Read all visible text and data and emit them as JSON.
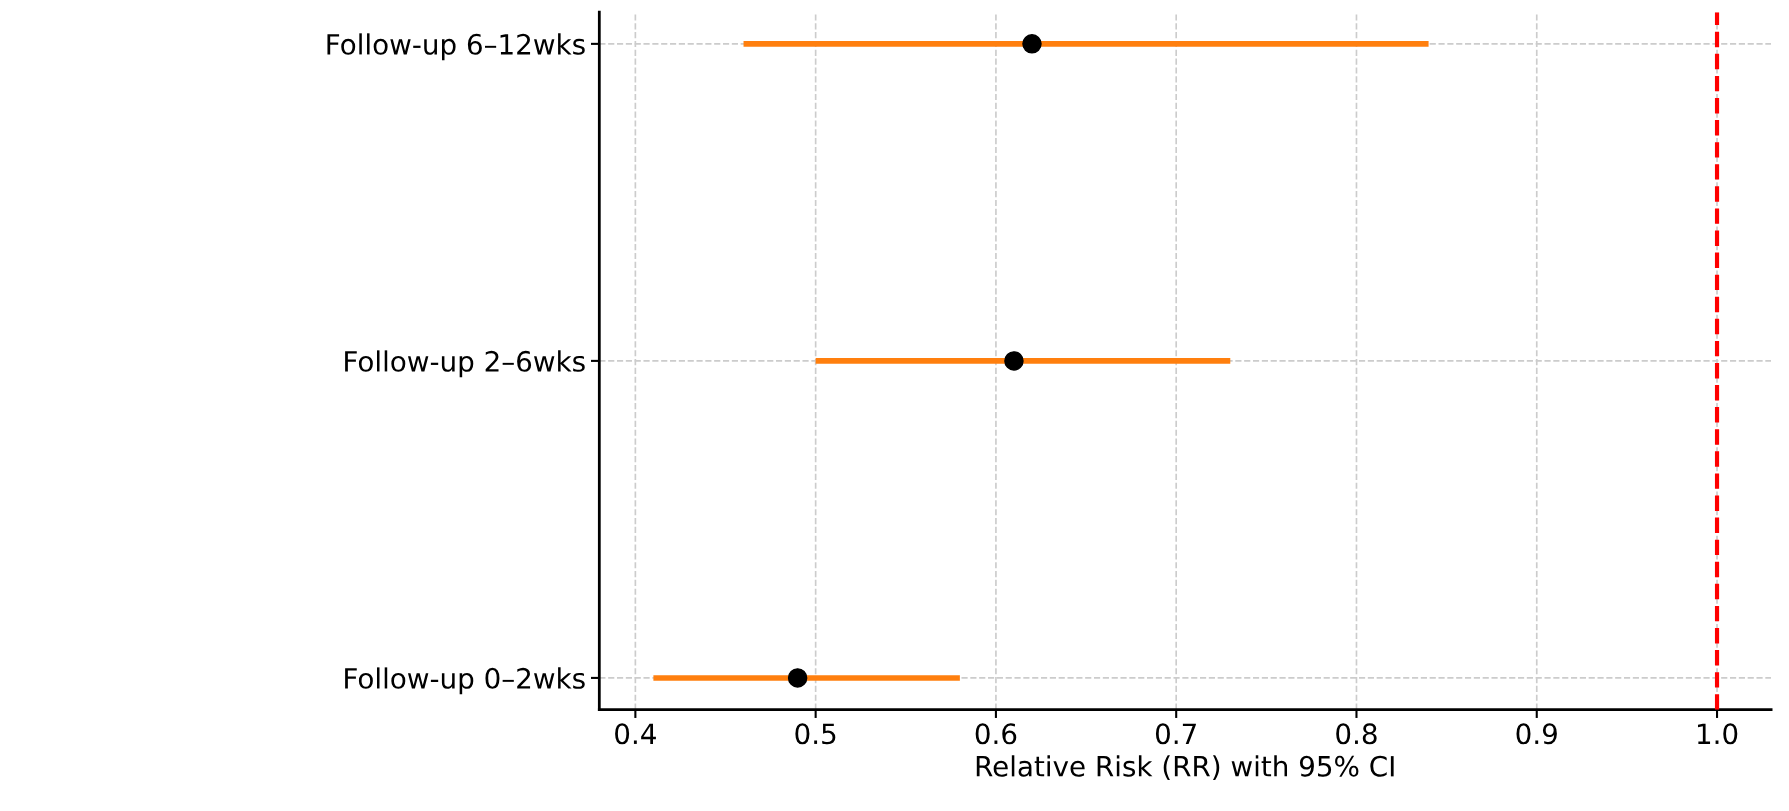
{
  "chart_data": {
    "type": "scatter",
    "orientation": "horizontal",
    "xlabel": "Relative Risk (RR) with 95% CI",
    "categories": [
      "Follow-up 6–12wks",
      "Follow-up 2–6wks",
      "Follow-up 0–2wks"
    ],
    "series": [
      {
        "color": "#ff7f0e",
        "colors": [
          "#000000",
          "#000000",
          "#000000"
        ],
        "values": [
          0.62,
          0.61,
          0.49
        ],
        "errors": [
          [
            0.46,
            0.84
          ],
          [
            0.5,
            0.73
          ],
          [
            0.41,
            0.58
          ]
        ]
      }
    ],
    "xlim": [
      0.38,
      1.03
    ],
    "xticks": [
      {
        "value": 0.4,
        "label": "0.4"
      },
      {
        "value": 0.5,
        "label": "0.5"
      },
      {
        "value": 0.6,
        "label": "0.6"
      },
      {
        "value": 0.7,
        "label": "0.7"
      },
      {
        "value": 0.8,
        "label": "0.8"
      },
      {
        "value": 0.9,
        "label": "0.9"
      },
      {
        "value": 1.0,
        "label": "1.0"
      }
    ],
    "ref_lines": [
      {
        "axis": "x",
        "value": 1.0,
        "color": "#ff0000",
        "line_style": "dashed"
      }
    ],
    "grid": true,
    "marker": "circle",
    "legend": false
  }
}
